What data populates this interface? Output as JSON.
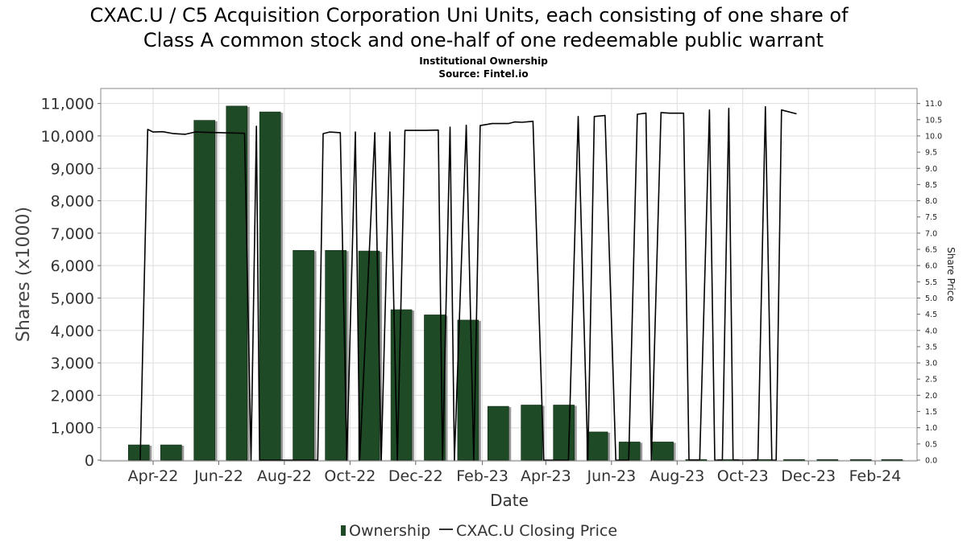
{
  "chart_data": {
    "type": "bar",
    "title_line1": "CXAC.U / C5 Acquisition Corporation Uni Units, each consisting of one share of",
    "title_line2": "Class A common stock and one-half of one redeemable public warrant",
    "subtitle_line1": "Institutional Ownership",
    "subtitle_line2": "Source: Fintel.io",
    "xlabel": "Date",
    "ylabel": "Shares (x1000)",
    "y2label": "Share Price",
    "ylim": [
      0,
      11500
    ],
    "y2lim": [
      0,
      11.5
    ],
    "yticks": [
      "0",
      "1,000",
      "2,000",
      "3,000",
      "4,000",
      "5,000",
      "6,000",
      "7,000",
      "8,000",
      "9,000",
      "10,000",
      "11,000"
    ],
    "y2ticks": [
      "0.0",
      "0.5",
      "1.0",
      "1.5",
      "2.0",
      "2.5",
      "3.0",
      "3.5",
      "4.0",
      "4.5",
      "5.0",
      "5.5",
      "6.0",
      "6.5",
      "7.0",
      "7.5",
      "8.0",
      "8.5",
      "9.0",
      "9.5",
      "10.0",
      "10.5",
      "11.0"
    ],
    "xticks": [
      "Apr-22",
      "Jun-22",
      "Aug-22",
      "Oct-22",
      "Dec-22",
      "Feb-23",
      "Apr-23",
      "Jun-23",
      "Aug-23",
      "Oct-23",
      "Dec-23",
      "Feb-24"
    ],
    "grid": true,
    "legend_placement": "bottom-center",
    "legend": [
      "Ownership",
      "CXAC.U Closing Price"
    ],
    "colors": {
      "bar": "#1e4a25",
      "bar_shadow": "#999999",
      "line": "#000000",
      "grid": "#dddddd"
    },
    "series": [
      {
        "name": "Ownership",
        "type": "bar",
        "x": [
          "2022-03-31",
          "2022-04-30",
          "2022-05-31",
          "2022-06-30",
          "2022-07-31",
          "2022-08-31",
          "2022-09-30",
          "2022-10-31",
          "2022-11-30",
          "2022-12-31",
          "2023-01-31",
          "2023-02-28",
          "2023-03-31",
          "2023-04-30",
          "2023-05-31",
          "2023-06-30",
          "2023-07-31",
          "2023-08-31",
          "2023-09-30",
          "2023-10-31",
          "2023-11-30",
          "2023-12-31",
          "2024-01-31",
          "2024-02-29"
        ],
        "values": [
          470,
          470,
          10480,
          10920,
          10740,
          6470,
          6470,
          6450,
          4640,
          4480,
          4320,
          1660,
          1700,
          1700,
          870,
          560,
          560,
          20,
          20,
          20,
          20,
          20,
          20,
          20
        ]
      },
      {
        "name": "CXAC.U Closing Price",
        "type": "line",
        "axis": "right",
        "points": [
          [
            "2022-03-20",
            0.0
          ],
          [
            "2022-03-27",
            10.2
          ],
          [
            "2022-04-01",
            10.12
          ],
          [
            "2022-04-10",
            10.13
          ],
          [
            "2022-04-20",
            10.07
          ],
          [
            "2022-05-01",
            10.05
          ],
          [
            "2022-05-10",
            10.12
          ],
          [
            "2022-06-25",
            10.08
          ],
          [
            "2022-07-01",
            0.0
          ],
          [
            "2022-07-06",
            10.3
          ],
          [
            "2022-07-09",
            0.0
          ],
          [
            "2022-09-01",
            0.0
          ],
          [
            "2022-09-06",
            10.07
          ],
          [
            "2022-09-12",
            10.12
          ],
          [
            "2022-09-22",
            10.1
          ],
          [
            "2022-09-28",
            0.0
          ],
          [
            "2022-10-06",
            10.12
          ],
          [
            "2022-10-10",
            0.0
          ],
          [
            "2022-10-24",
            10.1
          ],
          [
            "2022-10-30",
            0.0
          ],
          [
            "2022-11-07",
            10.12
          ],
          [
            "2022-11-14",
            0.0
          ],
          [
            "2022-11-21",
            10.17
          ],
          [
            "2022-12-10",
            10.17
          ],
          [
            "2022-12-22",
            10.18
          ],
          [
            "2022-12-26",
            0.0
          ],
          [
            "2023-01-02",
            10.27
          ],
          [
            "2023-01-06",
            0.0
          ],
          [
            "2023-01-17",
            10.33
          ],
          [
            "2023-01-24",
            0.0
          ],
          [
            "2023-01-30",
            10.32
          ],
          [
            "2023-02-10",
            10.38
          ],
          [
            "2023-02-25",
            10.38
          ],
          [
            "2023-03-03",
            10.43
          ],
          [
            "2023-03-10",
            10.42
          ],
          [
            "2023-03-20",
            10.45
          ],
          [
            "2023-03-30",
            0.0
          ],
          [
            "2023-04-22",
            0.0
          ],
          [
            "2023-05-01",
            10.6
          ],
          [
            "2023-05-10",
            0.0
          ],
          [
            "2023-05-16",
            10.6
          ],
          [
            "2023-05-26",
            10.63
          ],
          [
            "2023-06-05",
            0.0
          ],
          [
            "2023-06-17",
            0.0
          ],
          [
            "2023-06-25",
            10.67
          ],
          [
            "2023-07-03",
            10.7
          ],
          [
            "2023-07-08",
            0.0
          ],
          [
            "2023-07-17",
            10.72
          ],
          [
            "2023-07-25",
            10.7
          ],
          [
            "2023-08-07",
            10.7
          ],
          [
            "2023-08-12",
            0.0
          ],
          [
            "2023-08-22",
            0.0
          ],
          [
            "2023-08-31",
            10.8
          ],
          [
            "2023-09-05",
            0.0
          ],
          [
            "2023-09-12",
            0.0
          ],
          [
            "2023-09-18",
            10.85
          ],
          [
            "2023-09-22",
            0.0
          ],
          [
            "2023-10-15",
            0.0
          ],
          [
            "2023-10-22",
            10.9
          ],
          [
            "2023-10-28",
            0.0
          ],
          [
            "2023-11-01",
            0.0
          ],
          [
            "2023-11-06",
            10.8
          ],
          [
            "2023-11-20",
            10.68
          ]
        ]
      }
    ]
  }
}
